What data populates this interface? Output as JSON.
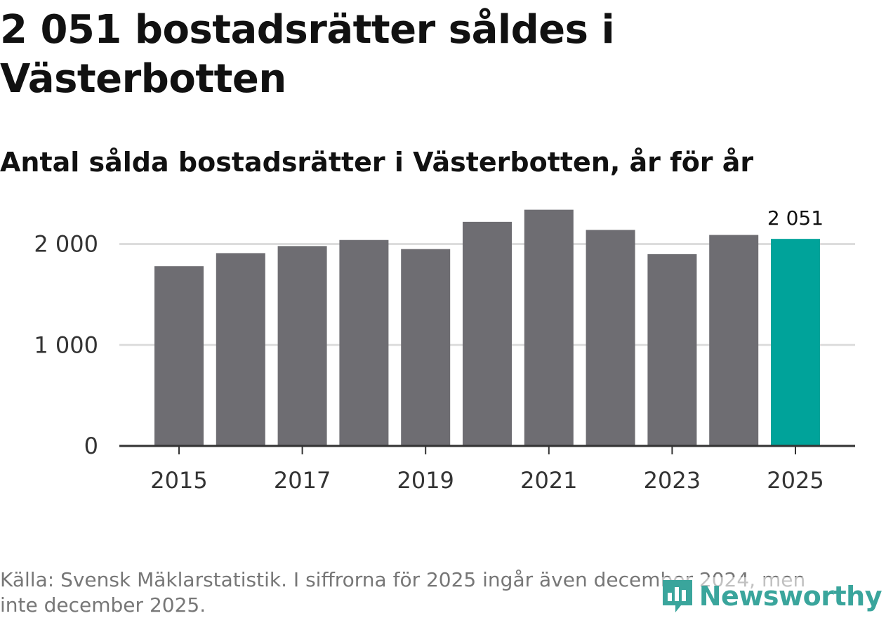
{
  "header": {
    "title": "2 051 bostadsrätter såldes i Västerbotten",
    "subtitle": "Antal sålda bostadsrätter i Västerbotten, år för år"
  },
  "chart_data": {
    "type": "bar",
    "title": "2 051 bostadsrätter såldes i Västerbotten",
    "subtitle": "Antal sålda bostadsrätter i Västerbotten, år för år",
    "xlabel": "",
    "ylabel": "",
    "categories": [
      "2015",
      "2016",
      "2017",
      "2018",
      "2019",
      "2020",
      "2021",
      "2022",
      "2023",
      "2024",
      "2025"
    ],
    "values": [
      1780,
      1910,
      1980,
      2040,
      1950,
      2220,
      2340,
      2140,
      1900,
      2090,
      2051
    ],
    "x_tick_labels": [
      "2015",
      "2017",
      "2019",
      "2021",
      "2023",
      "2025"
    ],
    "yticks": [
      0,
      1000,
      2000
    ],
    "ytick_labels": [
      "0",
      "1 000",
      "2 000"
    ],
    "ylim": [
      0,
      2400
    ],
    "grid": true,
    "highlight_category": "2025",
    "highlight_label": "2 051",
    "colors": {
      "bar": "#6e6d72",
      "highlight": "#00a39a",
      "grid": "#dddddd",
      "axis": "#333333"
    }
  },
  "footer": {
    "source": "Källa: Svensk Mäklarstatistik. I siffrorna för 2025 ingår även december 2024, men inte december 2025.",
    "logo_text": "Newsworthy",
    "logo_icon": "newsworthy-chart-icon",
    "logo_color": "#3aa59c"
  }
}
